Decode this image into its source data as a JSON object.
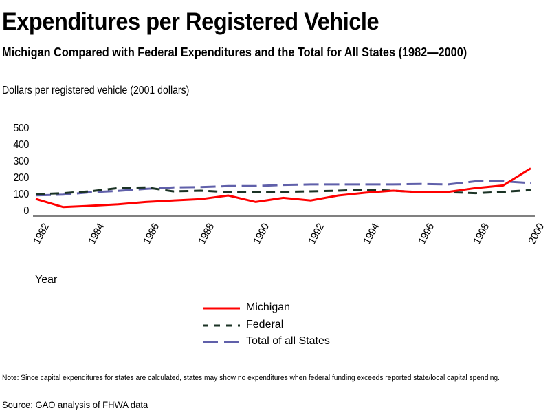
{
  "header": {
    "title": "Expenditures per Registered Vehicle",
    "subtitle": "Michigan Compared with Federal Expenditures and the Total for All States (1982—2000)"
  },
  "footer": {
    "note": "Note:  Since capital expenditures for states are calculated, states may show no expenditures when federal funding exceeds reported state/local capital spending.",
    "source": "Source: GAO analysis of FHWA data"
  },
  "chart_data": {
    "type": "line",
    "title": "Expenditures per Registered Vehicle",
    "subtitle": "Michigan Compared with Federal Expenditures and the Total for All States (1982—2000)",
    "xlabel": "Year",
    "ylabel": "Dollars per registered vehicle (2001 dollars)",
    "ylim": [
      0,
      500
    ],
    "yticks": [
      0,
      100,
      200,
      300,
      400,
      500
    ],
    "xticks": [
      1982,
      1984,
      1986,
      1988,
      1990,
      1992,
      1994,
      1996,
      1998,
      2000
    ],
    "grid": false,
    "legend_position": "bottom-center",
    "x": [
      1982,
      1983,
      1984,
      1985,
      1986,
      1987,
      1988,
      1989,
      1990,
      1991,
      1992,
      1993,
      1994,
      1995,
      1996,
      1997,
      1998,
      1999,
      2000
    ],
    "series": [
      {
        "name": "Michigan",
        "color": "#ff0000",
        "style": "solid",
        "values": [
          79,
          30,
          38,
          47,
          61,
          70,
          78,
          100,
          61,
          86,
          70,
          100,
          117,
          129,
          120,
          122,
          145,
          161,
          264
        ]
      },
      {
        "name": "Federal",
        "color": "#1b3325",
        "style": "dashed",
        "values": [
          108,
          114,
          126,
          145,
          149,
          125,
          129,
          121,
          120,
          122,
          125,
          129,
          136,
          129,
          120,
          120,
          114,
          122,
          133
        ]
      },
      {
        "name": "Total of all States",
        "color": "#6060aa",
        "style": "long-dashed",
        "values": [
          101,
          105,
          120,
          128,
          140,
          149,
          151,
          157,
          157,
          164,
          167,
          167,
          167,
          167,
          170,
          167,
          186,
          186,
          175
        ]
      }
    ]
  }
}
